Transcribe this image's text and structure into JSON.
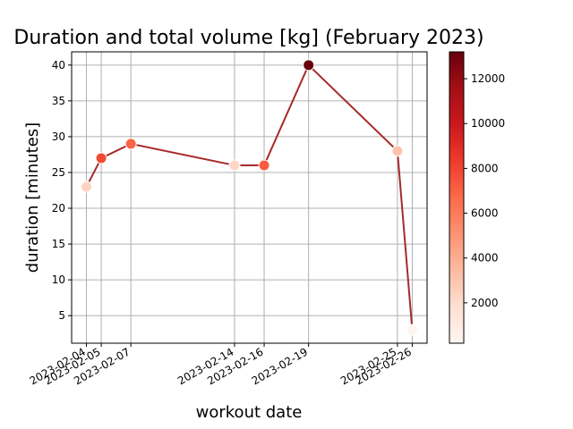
{
  "chart_data": {
    "type": "scatter",
    "title": "Duration and total volume [kg] (February 2023)",
    "xlabel": "workout date",
    "ylabel": "duration [minutes]",
    "x": [
      "2023-02-04",
      "2023-02-05",
      "2023-02-07",
      "2023-02-14",
      "2023-02-16",
      "2023-02-19",
      "2023-02-25",
      "2023-02-26"
    ],
    "series": [
      {
        "y": [
          23,
          27,
          29,
          26,
          26,
          40,
          28,
          3
        ],
        "color_values": [
          2400,
          7800,
          6900,
          2200,
          7200,
          13200,
          3100,
          200
        ],
        "line": true
      }
    ],
    "xticks": [
      "2023-02-04",
      "2023-02-05",
      "2023-02-07",
      "2023-02-14",
      "2023-02-16",
      "2023-02-19",
      "2023-02-25",
      "2023-02-26"
    ],
    "yticks": [
      5,
      10,
      15,
      20,
      25,
      30,
      35,
      40
    ],
    "ylim": [
      1.15,
      41.85
    ],
    "xlim": [
      "2023-02-03",
      "2023-02-27"
    ],
    "grid": true,
    "colorbar": {
      "colormap": "Reds",
      "min": 200,
      "max": 13200,
      "ticks": [
        2000,
        4000,
        6000,
        8000,
        10000,
        12000
      ]
    },
    "colors": {
      "line": "#a52a2a",
      "grid": "#b0b0b0"
    }
  }
}
